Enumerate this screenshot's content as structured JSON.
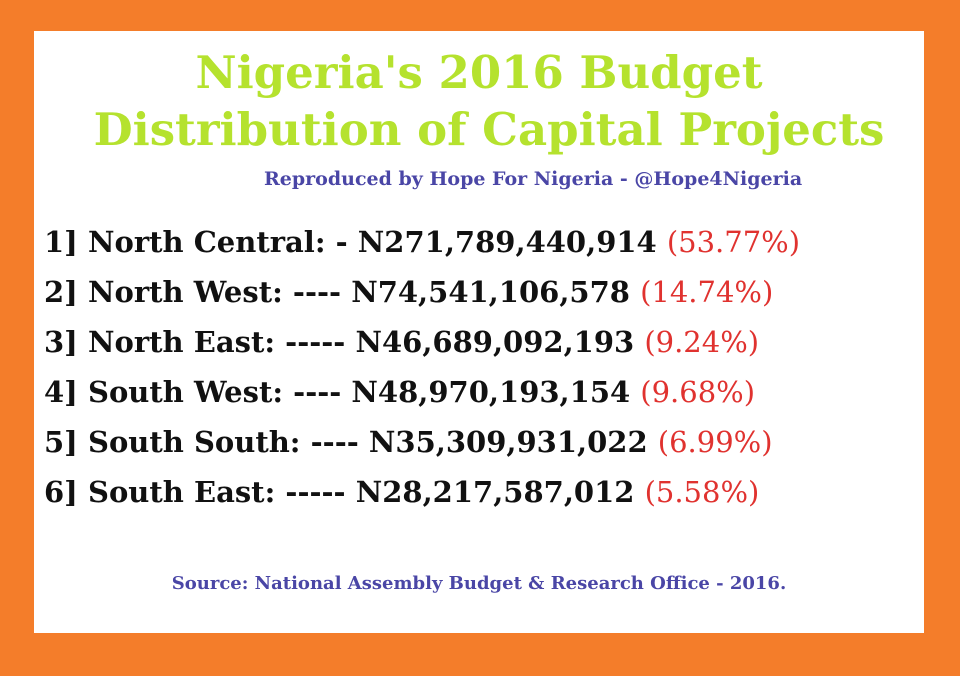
{
  "title": {
    "line1": "Nigeria's 2016 Budget",
    "line2": "Distribution of Capital Projects"
  },
  "credit": "Reproduced by Hope For Nigeria - @Hope4Nigeria",
  "items": [
    {
      "num": "1]",
      "region": "North Central:",
      "sep": "-",
      "amount": "N271,789,440,914",
      "pct": "(53.77%)"
    },
    {
      "num": "2]",
      "region": "North West:",
      "sep": "----",
      "amount": "N74,541,106,578",
      "pct": "(14.74%)"
    },
    {
      "num": "3]",
      "region": "North East:",
      "sep": "-----",
      "amount": "N46,689,092,193",
      "pct": "(9.24%)"
    },
    {
      "num": "4]",
      "region": "South West:",
      "sep": "----",
      "amount": "N48,970,193,154",
      "pct": "(9.68%)"
    },
    {
      "num": "5]",
      "region": "South South:",
      "sep": "----",
      "amount": "N35,309,931,022",
      "pct": "(6.99%)"
    },
    {
      "num": "6]",
      "region": "South East:",
      "sep": "-----",
      "amount": "N28,217,587,012",
      "pct": "(5.58%)"
    }
  ],
  "source": "Source: National Assembly Budget & Research Office - 2016.",
  "colors": {
    "frame": "#f47d2a",
    "title": "#b5e22e",
    "credit": "#4a46a6",
    "percent": "#e0322f",
    "text": "#111111"
  }
}
